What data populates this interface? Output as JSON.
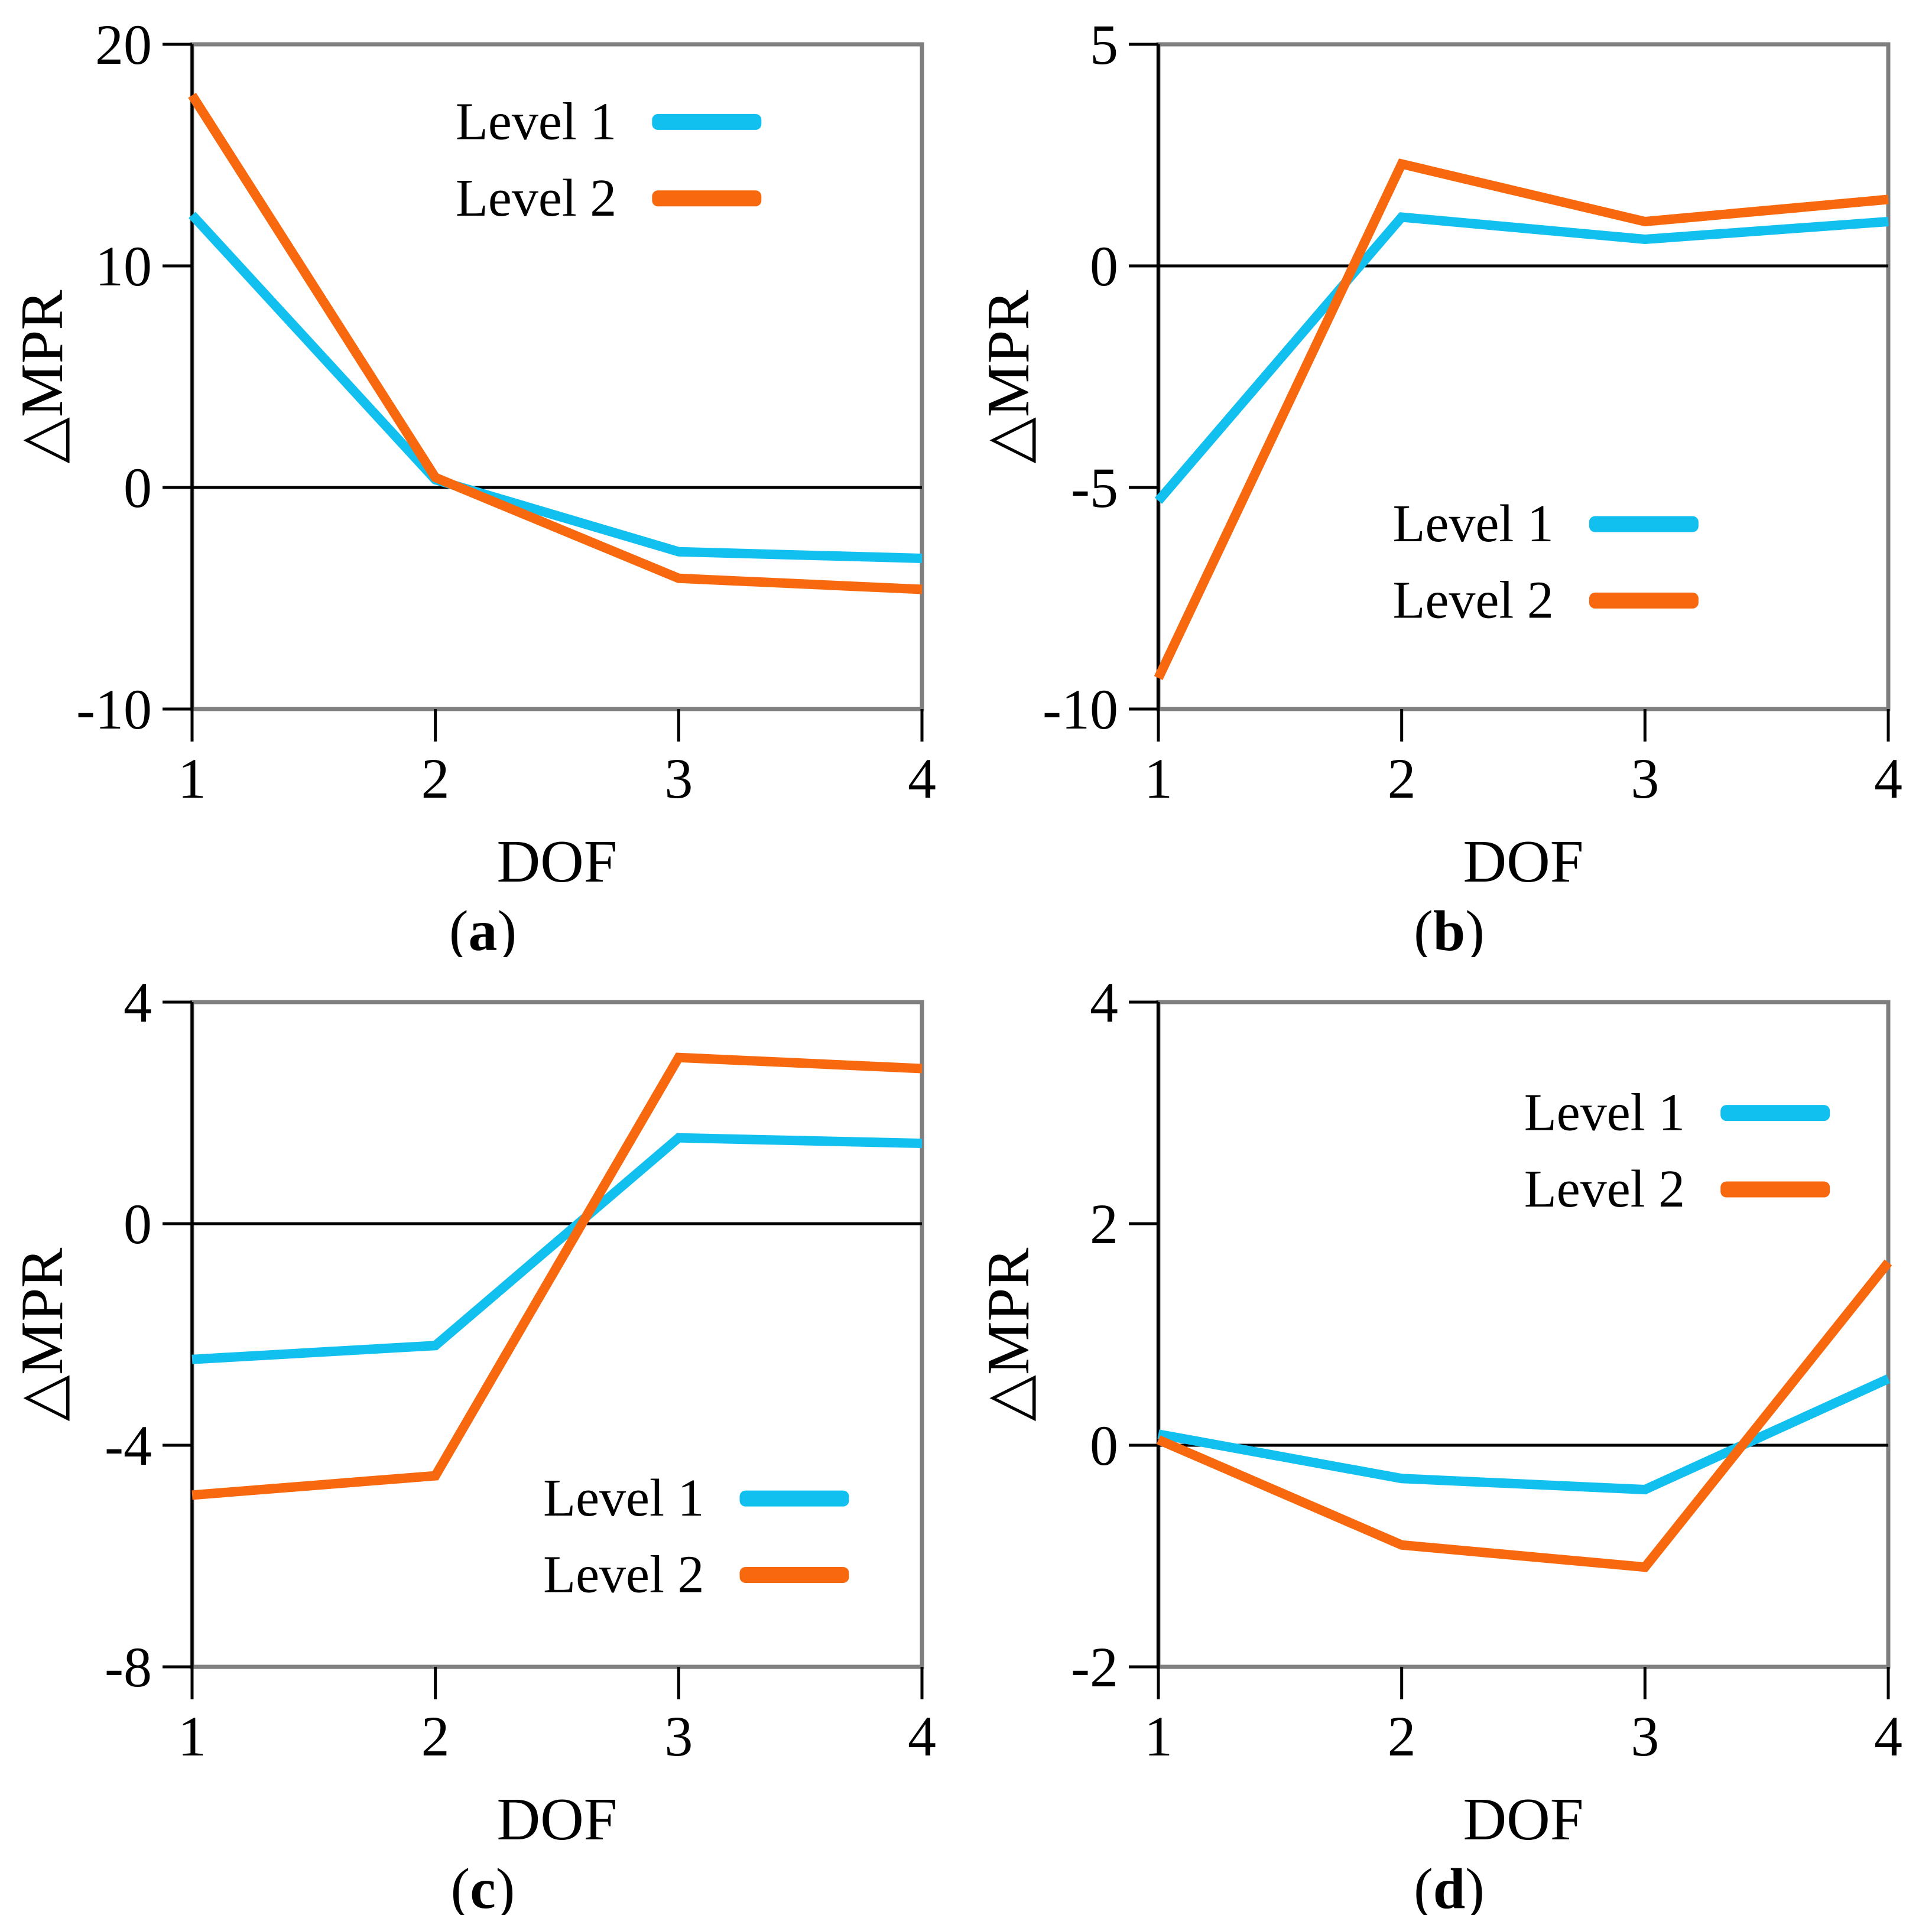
{
  "figure": {
    "background": "#ffffff",
    "colors": {
      "level1": "#12C0F0",
      "level2": "#F8690F",
      "frame": "#7F7F7F",
      "axis": "#000000",
      "zero_line": "#000000",
      "text": "#000000"
    },
    "legend_labels": [
      "Level 1",
      "Level 2"
    ]
  },
  "chart_data": [
    {
      "type": "line",
      "panel": "a",
      "caption": {
        "open": "(",
        "letter": "a",
        "close": ")"
      },
      "xlabel": "DOF",
      "ylabel": "△MPR",
      "x": [
        1,
        2,
        3,
        4
      ],
      "xlim": [
        1,
        4
      ],
      "xticks": [
        1,
        2,
        3,
        4
      ],
      "xtick_labels": [
        "1",
        "2",
        "3",
        "4"
      ],
      "ylim": [
        -10,
        20
      ],
      "yticks": [
        20,
        10,
        0,
        -10
      ],
      "ytick_labels": [
        "20",
        "10",
        "0",
        "-10"
      ],
      "zero_line": true,
      "grid": false,
      "series": [
        {
          "name": "Level 1",
          "color_key": "level1",
          "values": [
            12.3,
            0.35,
            -2.9,
            -3.2
          ]
        },
        {
          "name": "Level 2",
          "color_key": "level2",
          "values": [
            17.7,
            0.45,
            -4.1,
            -4.6
          ]
        }
      ],
      "legend": {
        "position": "top-right-inside",
        "anchor_x": 0.78,
        "row1_y": 0.115,
        "row2_y": 0.23
      }
    },
    {
      "type": "line",
      "panel": "b",
      "caption": {
        "open": "(",
        "letter": "b",
        "close": ")"
      },
      "xlabel": "DOF",
      "ylabel": "△MPR",
      "x": [
        1,
        2,
        3,
        4
      ],
      "xlim": [
        1,
        4
      ],
      "xticks": [
        1,
        2,
        3,
        4
      ],
      "xtick_labels": [
        "1",
        "2",
        "3",
        "4"
      ],
      "ylim": [
        -10,
        5
      ],
      "yticks": [
        5,
        0,
        -5,
        -10
      ],
      "ytick_labels": [
        "5",
        "0",
        "-5",
        "-10"
      ],
      "zero_line": true,
      "grid": false,
      "series": [
        {
          "name": "Level 1",
          "color_key": "level1",
          "values": [
            -5.3,
            1.1,
            0.6,
            1.0
          ]
        },
        {
          "name": "Level 2",
          "color_key": "level2",
          "values": [
            -9.3,
            2.3,
            1.0,
            1.5
          ]
        }
      ],
      "legend": {
        "position": "center-right-inside",
        "anchor_x": 0.74,
        "row1_y": 0.72,
        "row2_y": 0.835
      }
    },
    {
      "type": "line",
      "panel": "c",
      "caption": {
        "open": "(",
        "letter": "c",
        "close": ")"
      },
      "xlabel": "DOF",
      "ylabel": "△MPR",
      "x": [
        1,
        2,
        3,
        4
      ],
      "xlim": [
        1,
        4
      ],
      "xticks": [
        1,
        2,
        3,
        4
      ],
      "xtick_labels": [
        "1",
        "2",
        "3",
        "4"
      ],
      "ylim": [
        -8,
        4
      ],
      "yticks": [
        4,
        0,
        -4,
        -8
      ],
      "ytick_labels": [
        "4",
        "0",
        "-4",
        "-8"
      ],
      "zero_line": true,
      "grid": false,
      "series": [
        {
          "name": "Level 1",
          "color_key": "level1",
          "values": [
            -2.45,
            -2.2,
            1.55,
            1.45
          ]
        },
        {
          "name": "Level 2",
          "color_key": "level2",
          "values": [
            -4.9,
            -4.55,
            3.0,
            2.8
          ]
        }
      ],
      "legend": {
        "position": "bottom-right-inside",
        "anchor_x": 0.9,
        "row1_y": 0.745,
        "row2_y": 0.86
      }
    },
    {
      "type": "line",
      "panel": "d",
      "caption": {
        "open": "(",
        "letter": "d",
        "close": ")"
      },
      "xlabel": "DOF",
      "ylabel": "△MPR",
      "x": [
        1,
        2,
        3,
        4
      ],
      "xlim": [
        1,
        4
      ],
      "xticks": [
        1,
        2,
        3,
        4
      ],
      "xtick_labels": [
        "1",
        "2",
        "3",
        "4"
      ],
      "ylim": [
        -2,
        4
      ],
      "yticks": [
        4,
        2,
        0,
        -2
      ],
      "ytick_labels": [
        "4",
        "2",
        "0",
        "-2"
      ],
      "zero_line": true,
      "grid": false,
      "series": [
        {
          "name": "Level 1",
          "color_key": "level1",
          "values": [
            0.1,
            -0.3,
            -0.4,
            0.6
          ]
        },
        {
          "name": "Level 2",
          "color_key": "level2",
          "values": [
            0.05,
            -0.9,
            -1.1,
            1.65
          ]
        }
      ],
      "legend": {
        "position": "top-right-inside",
        "anchor_x": 0.92,
        "row1_y": 0.165,
        "row2_y": 0.28
      }
    }
  ]
}
